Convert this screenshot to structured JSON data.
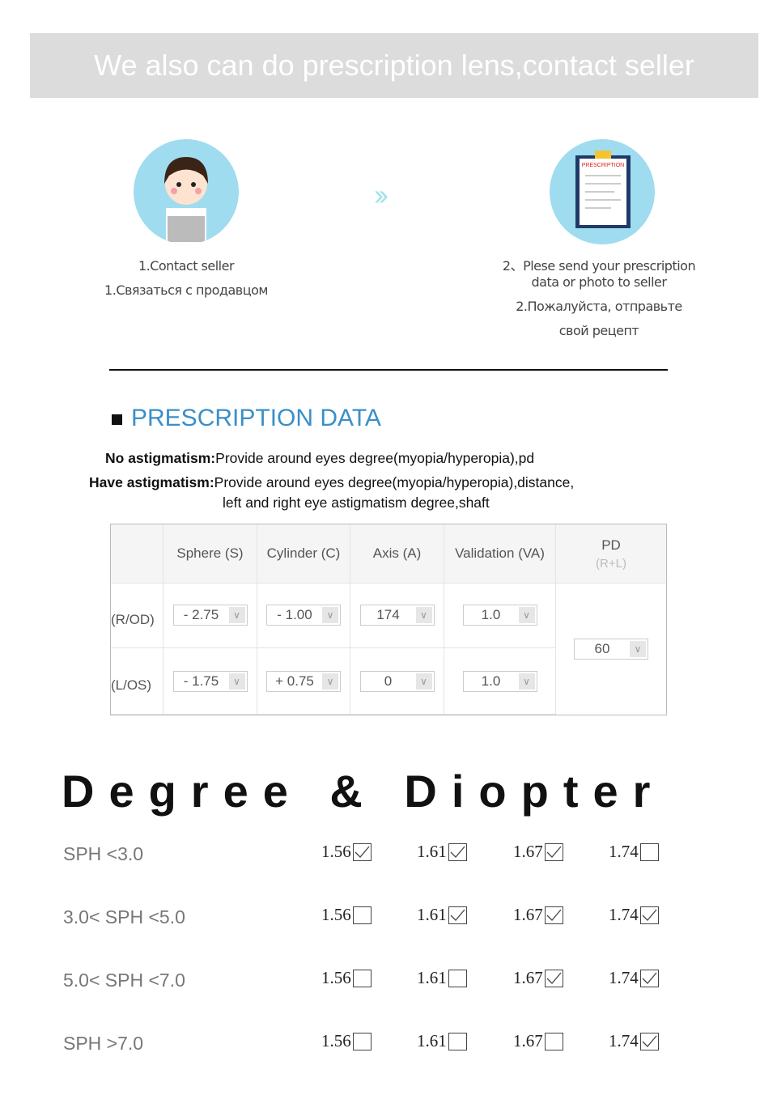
{
  "banner": {
    "text": "We also can do prescription lens,contact seller"
  },
  "steps": [
    {
      "icon": "customer-service-icon",
      "lines": [
        "1.Contact seller",
        "1.Связаться с продавцом"
      ]
    },
    {
      "icon": "prescription-document-icon",
      "icon_label": "PRESCRIPTION",
      "lines": [
        "2、Plese send your prescription",
        "data or photo to seller",
        "2.Пожалуйста, отправьте",
        "свой рецепт"
      ]
    }
  ],
  "arrow_icon": "double-chevron-right-icon",
  "section": {
    "title": "PRESCRIPTION DATA",
    "title_color": "#3a8fc8",
    "no_astig_label": "No astigmatism:",
    "no_astig_text": "Provide around eyes degree(myopia/hyperopia),pd",
    "astig_label": "Have astigmatism:",
    "astig_text": "Provide around eyes degree(myopia/hyperopia),distance,",
    "astig_text2": "left and right eye astigmatism degree,shaft"
  },
  "table": {
    "headers": [
      "Sphere (S)",
      "Cylinder (C)",
      "Axis (A)",
      "Validation (VA)"
    ],
    "pd_header": "PD",
    "pd_sub": "(R+L)",
    "rows": [
      {
        "label": "(R/OD)",
        "values": [
          "- 2.75",
          "- 1.00",
          "174",
          "1.0"
        ]
      },
      {
        "label": "(L/OS)",
        "values": [
          "- 1.75",
          "+ 0.75",
          "0",
          "1.0"
        ]
      }
    ],
    "pd_value": "60"
  },
  "degree": {
    "title": "Degree & Diopter",
    "indices": [
      "1.56",
      "1.61",
      "1.67",
      "1.74"
    ],
    "rows": [
      {
        "label": "SPH <3.0",
        "checked": [
          true,
          true,
          true,
          false
        ]
      },
      {
        "label": "3.0< SPH <5.0",
        "checked": [
          false,
          true,
          true,
          true
        ]
      },
      {
        "label": "5.0< SPH <7.0",
        "checked": [
          false,
          false,
          true,
          true
        ]
      },
      {
        "label": "SPH >7.0",
        "checked": [
          false,
          false,
          false,
          true
        ]
      }
    ]
  }
}
